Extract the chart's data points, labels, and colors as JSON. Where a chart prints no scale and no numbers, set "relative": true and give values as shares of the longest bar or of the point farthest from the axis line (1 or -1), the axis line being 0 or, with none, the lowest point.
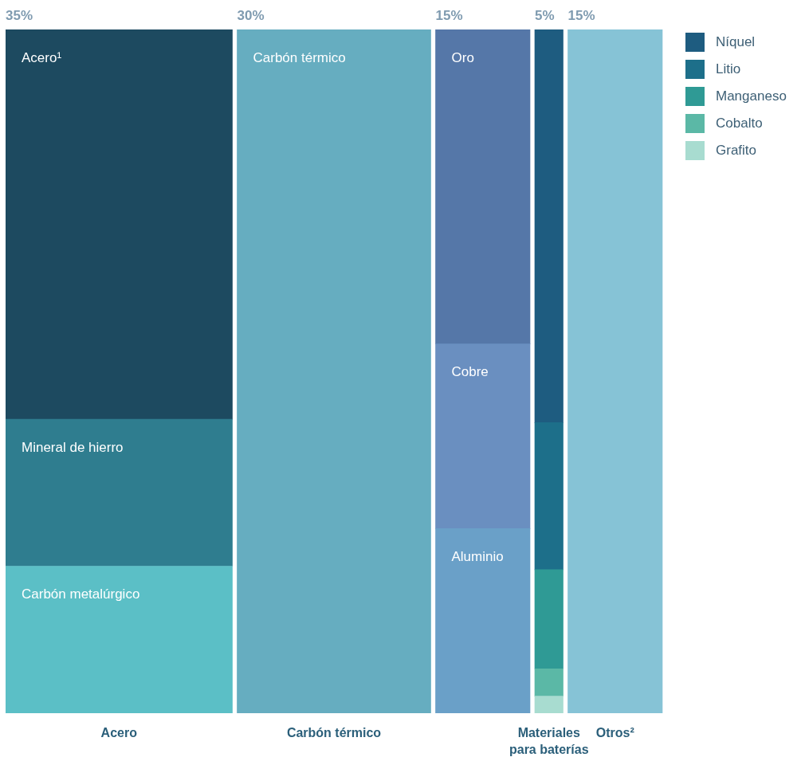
{
  "chart_data": {
    "type": "bar",
    "stacked": true,
    "relative": true,
    "legend": "top right",
    "categories": [
      "Acero",
      "Carbón térmico",
      null,
      "Materiales para baterías",
      "Otros²"
    ],
    "annotations": [
      "35%",
      "30%",
      "15%",
      "5%",
      "15%"
    ],
    "series": [
      {
        "name": "Carbón metalúrgico",
        "color": "#5bbfc6",
        "values": [
          0.215,
          null,
          null,
          null,
          null
        ]
      },
      {
        "name": "Mineral de hierro",
        "color": "#2f7d8f",
        "values": [
          0.215,
          null,
          null,
          null,
          null
        ]
      },
      {
        "name": "Acero¹",
        "color": "#1d4a60",
        "values": [
          0.57,
          null,
          null,
          null,
          null
        ]
      },
      {
        "name": "Carbón térmico",
        "color": "#66adc0",
        "values": [
          null,
          1,
          null,
          null,
          null
        ]
      },
      {
        "name": "Aluminio",
        "color": "#6aa0c8",
        "values": [
          null,
          null,
          0.27,
          null,
          null
        ]
      },
      {
        "name": "Cobre",
        "color": "#6a8fc0",
        "values": [
          null,
          null,
          0.27,
          null,
          null
        ]
      },
      {
        "name": "Oro",
        "color": "#5577a8",
        "values": [
          null,
          null,
          0.46,
          null,
          null
        ]
      },
      {
        "name": "Grafito",
        "color": "#a8dcd0",
        "values": [
          null,
          null,
          null,
          0.025,
          null
        ]
      },
      {
        "name": "Cobalto",
        "color": "#5bb8a6",
        "values": [
          null,
          null,
          null,
          0.04,
          null
        ]
      },
      {
        "name": "Manganeso",
        "color": "#2f9a95",
        "values": [
          null,
          null,
          null,
          0.145,
          null
        ]
      },
      {
        "name": "Litio",
        "color": "#1d6f8a",
        "values": [
          null,
          null,
          null,
          0.215,
          null
        ]
      },
      {
        "name": "Níquel",
        "color": "#1e5c80",
        "values": [
          null,
          null,
          null,
          0.575,
          null
        ]
      },
      {
        "color": "#86c3d6",
        "values": [
          null,
          null,
          null,
          null,
          1
        ]
      }
    ]
  }
}
